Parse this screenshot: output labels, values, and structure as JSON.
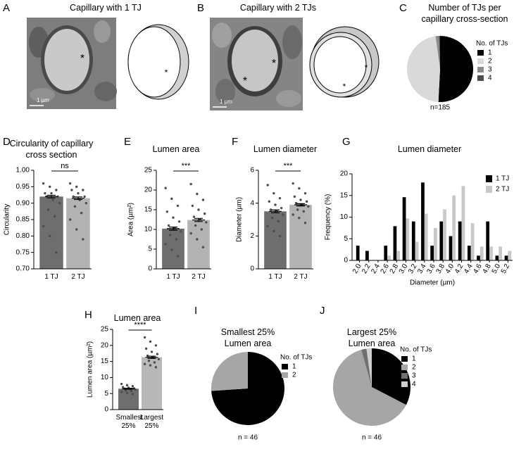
{
  "panel_labels": [
    "A",
    "B",
    "C",
    "D",
    "E",
    "F",
    "G",
    "H",
    "I",
    "J"
  ],
  "images": [
    {
      "title": "Capillary with 1 TJ",
      "scale_bar": "1 µm",
      "image_markers": [
        "*"
      ],
      "schematic_markers": [
        "*"
      ]
    },
    {
      "title": "Capillary with 2 TJs",
      "scale_bar": "1 µm",
      "image_markers": [
        "*",
        "*"
      ],
      "schematic_markers": [
        "*",
        "*"
      ]
    }
  ],
  "chart_data": [
    {
      "type": "pie",
      "title": "Number of TJs per capillary cross-section",
      "legend_title": "No. of TJs",
      "categories": [
        "1",
        "2",
        "3",
        "4"
      ],
      "values": [
        94,
        87,
        3,
        1
      ],
      "colors": [
        "#000000",
        "#d9d9d9",
        "#8c8c8c",
        "#4d4d4d"
      ],
      "note": "n=185"
    },
    {
      "type": "bar",
      "title": "Circularity of capillary cross section",
      "ylabel": "Circularity",
      "categories": [
        "1 TJ",
        "2 TJ"
      ],
      "values": [
        0.92,
        0.915
      ],
      "errors": [
        0.004,
        0.004
      ],
      "points": [
        [
          0.96,
          0.95,
          0.94,
          0.93,
          0.93,
          0.92,
          0.92,
          0.91,
          0.9,
          0.88,
          0.86,
          0.83,
          0.8,
          0.75
        ],
        [
          0.96,
          0.95,
          0.94,
          0.94,
          0.93,
          0.92,
          0.92,
          0.91,
          0.9,
          0.89,
          0.87,
          0.85,
          0.82,
          0.79
        ]
      ],
      "colors": [
        "#6e6e6e",
        "#b3b3b3"
      ],
      "point_color": "#4d4d4d",
      "significance": "ns",
      "ylim": [
        0.7,
        1.0
      ],
      "yticks": [
        {
          "value": 0.7,
          "label": "0.70"
        },
        {
          "value": 0.75,
          "label": "0.75"
        },
        {
          "value": 0.8,
          "label": "0.80"
        },
        {
          "value": 0.85,
          "label": "0.85"
        },
        {
          "value": 0.9,
          "label": "0.90"
        },
        {
          "value": 0.95,
          "label": "0.95"
        },
        {
          "value": 1.0,
          "label": "1.00"
        }
      ]
    },
    {
      "type": "bar",
      "title": "Lumen area",
      "ylabel": "Area (µm²)",
      "categories": [
        "1 TJ",
        "2 TJ"
      ],
      "values": [
        10.2,
        12.4
      ],
      "errors": [
        0.4,
        0.4
      ],
      "points": [
        [
          20.5,
          17.8,
          16,
          14.5,
          13,
          12,
          11,
          10.3,
          9.5,
          8.6,
          7.5,
          6.3,
          4.8,
          3.2
        ],
        [
          21.5,
          19,
          17.5,
          16,
          15,
          14,
          13.2,
          12.5,
          11.8,
          11,
          10,
          9,
          7.5,
          5.5
        ]
      ],
      "colors": [
        "#6e6e6e",
        "#b3b3b3"
      ],
      "point_color": "#4d4d4d",
      "significance": "***",
      "ylim": [
        0,
        25
      ],
      "yticks": [
        0,
        5,
        10,
        15,
        20,
        25
      ]
    },
    {
      "type": "bar",
      "title": "Lumen diameter",
      "ylabel": "Diameter (µm)",
      "categories": [
        "1 TJ",
        "2 TJ"
      ],
      "values": [
        3.5,
        3.9
      ],
      "errors": [
        0.09,
        0.07
      ],
      "points": [
        [
          5.1,
          4.6,
          4.3,
          4.1,
          3.9,
          3.7,
          3.6,
          3.5,
          3.3,
          3.1,
          2.9,
          2.6,
          2.3,
          2.0
        ],
        [
          5.2,
          4.9,
          4.6,
          4.4,
          4.2,
          4.1,
          4.0,
          3.9,
          3.8,
          3.6,
          3.5,
          3.3,
          3.1,
          2.8
        ]
      ],
      "colors": [
        "#6e6e6e",
        "#b3b3b3"
      ],
      "point_color": "#4d4d4d",
      "significance": "***",
      "ylim": [
        0,
        6
      ],
      "yticks": [
        0,
        2,
        4,
        6
      ]
    },
    {
      "type": "grouped_bar",
      "title": "Lumen diameter",
      "xlabel": "Diameter (µm)",
      "ylabel": "Frequency (%)",
      "categories": [
        "2.0",
        "2.2",
        "2.4",
        "2.6",
        "2.8",
        "3.0",
        "3.2",
        "3.4",
        "3.6",
        "3.8",
        "4.0",
        "4.2",
        "4.4",
        "4.6",
        "4.8",
        "5.0",
        "5.2"
      ],
      "series": [
        {
          "name": "1 TJ",
          "color": "#000000",
          "values": [
            3.4,
            2.2,
            0,
            3.4,
            7.9,
            14.6,
            9,
            18,
            3.4,
            9,
            5.6,
            9,
            3.4,
            1.1,
            9,
            1.1,
            1.1
          ]
        },
        {
          "name": "2 TJ",
          "color": "#c8c8c8",
          "values": [
            0,
            0,
            0,
            1.1,
            2.2,
            9.7,
            4.3,
            10.8,
            7.5,
            11.8,
            15,
            17.2,
            8.6,
            3.2,
            3.2,
            3.2,
            2.2
          ]
        }
      ],
      "ylim": [
        0,
        20
      ],
      "yticks": [
        0,
        5,
        10,
        15,
        20
      ]
    },
    {
      "type": "bar",
      "title": "Lumen area",
      "ylabel": "Lumen area (µm²)",
      "categories": [
        "Smallest 25%",
        "Largest 25%"
      ],
      "values": [
        6.5,
        16.3
      ],
      "errors": [
        0.15,
        0.35
      ],
      "points": [
        [
          8.0,
          7.6,
          7.3,
          7.0,
          6.8,
          6.6,
          6.5,
          6.4,
          6.2,
          6.0,
          5.8,
          5.5,
          5.2,
          4.8
        ],
        [
          22.5,
          21.2,
          20,
          19,
          18,
          17.3,
          16.8,
          16.2,
          15.7,
          15.2,
          14.7,
          14.2,
          13.8,
          13.2
        ]
      ],
      "colors": [
        "#6e6e6e",
        "#b8b8b8"
      ],
      "point_color": "#4d4d4d",
      "significance": "****",
      "ylim": [
        0,
        25
      ],
      "yticks": [
        0,
        5,
        10,
        15,
        20,
        25
      ]
    },
    {
      "type": "pie",
      "title": "Smallest 25% Lumen area",
      "legend_title": "No. of TJs",
      "categories": [
        "1",
        "2"
      ],
      "values": [
        34,
        12
      ],
      "colors": [
        "#000000",
        "#a6a6a6"
      ],
      "note": "n = 46"
    },
    {
      "type": "pie",
      "title": "Largest 25% Lumen area",
      "legend_title": "No. of TJs",
      "categories": [
        "1",
        "2",
        "3",
        "4"
      ],
      "values": [
        15,
        29,
        1,
        1
      ],
      "colors": [
        "#000000",
        "#a6a6a6",
        "#707070",
        "#d0d0d0"
      ],
      "note": "n = 46"
    }
  ]
}
